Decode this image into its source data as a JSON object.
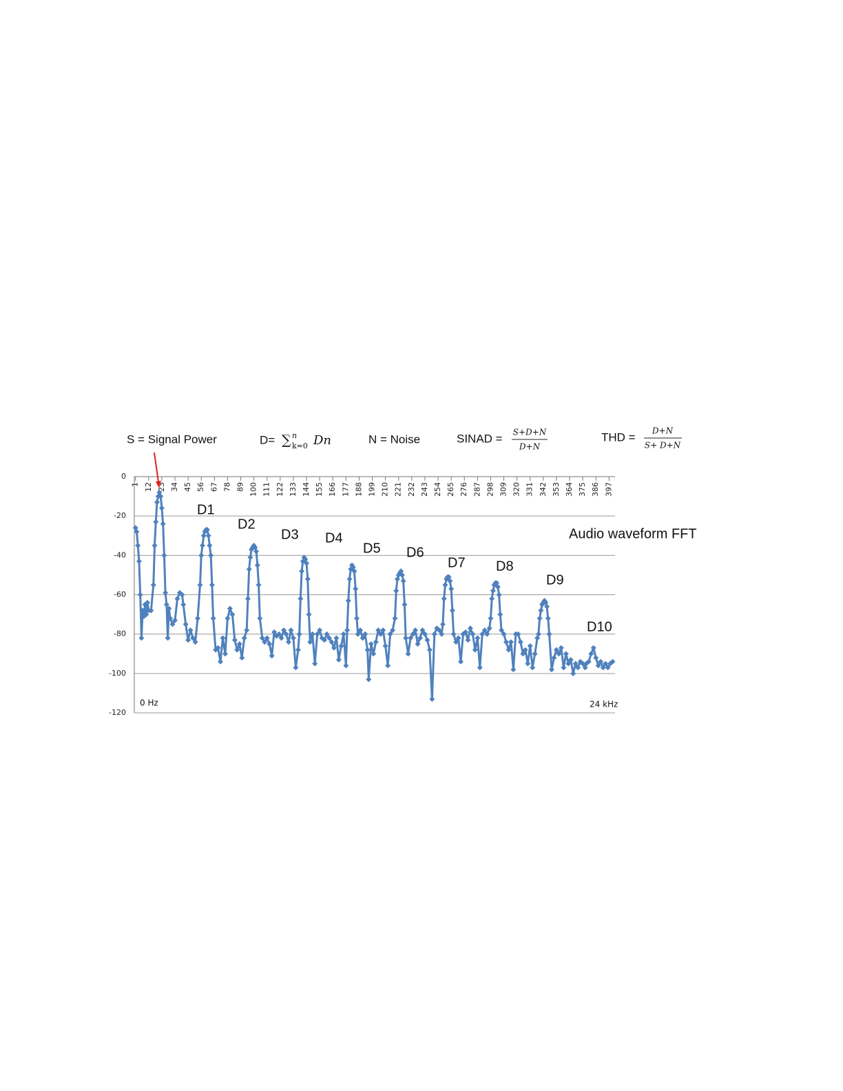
{
  "chart_data": {
    "type": "line",
    "title": "Audio waveform  FFT",
    "equations": {
      "signal": "S = Signal Power",
      "distortion": {
        "prefix": "D=",
        "sum": "∑",
        "sup": "n",
        "sub": "k=0",
        "term": "Dn"
      },
      "noise": "N = Noise",
      "sinad": {
        "label": "SINAD =",
        "numerator": "S+D+N",
        "denominator": "D+N"
      },
      "thd": {
        "label": "THD =",
        "numerator": "D+N",
        "denominator": "S+ D+N"
      }
    },
    "annotations": [
      "D1",
      "D2",
      "D3",
      "D4",
      "D5",
      "D6",
      "D7",
      "D8",
      "D9",
      "D10"
    ],
    "x_start_label": "0 Hz",
    "x_end_label": "24 kHz",
    "xlim": [
      0,
      402
    ],
    "xticks": [
      1,
      12,
      23,
      34,
      45,
      56,
      67,
      78,
      89,
      100,
      111,
      122,
      133,
      144,
      155,
      166,
      177,
      188,
      199,
      210,
      221,
      232,
      243,
      254,
      265,
      276,
      287,
      298,
      309,
      320,
      331,
      342,
      353,
      364,
      375,
      386,
      397
    ],
    "ylim": [
      -120,
      0
    ],
    "yticks": [
      0,
      -20,
      -40,
      -60,
      -80,
      -100,
      -120
    ],
    "grid": true,
    "x": [
      1,
      2,
      3,
      4,
      5,
      6,
      7,
      8,
      9,
      10,
      11,
      12,
      14,
      16,
      17,
      18,
      19,
      20,
      21,
      22,
      23,
      24,
      25,
      26,
      27,
      28,
      29,
      30,
      32,
      34,
      36,
      38,
      40,
      41,
      43,
      45,
      47,
      49,
      51,
      53,
      55,
      56,
      57,
      58,
      59,
      60,
      61,
      62,
      63,
      64,
      65,
      66,
      68,
      70,
      72,
      74,
      76,
      78,
      80,
      82,
      84,
      86,
      88,
      90,
      92,
      94,
      95,
      96,
      97,
      98,
      99,
      100,
      101,
      102,
      103,
      104,
      105,
      107,
      109,
      111,
      113,
      115,
      117,
      119,
      121,
      123,
      125,
      127,
      129,
      131,
      133,
      135,
      137,
      138,
      139,
      140,
      141,
      142,
      143,
      144,
      145,
      146,
      147,
      149,
      151,
      153,
      155,
      157,
      159,
      161,
      163,
      165,
      167,
      169,
      171,
      173,
      175,
      177,
      178,
      179,
      180,
      181,
      182,
      183,
      184,
      185,
      186,
      187,
      189,
      191,
      193,
      195,
      196,
      198,
      200,
      202,
      204,
      206,
      208,
      210,
      212,
      214,
      216,
      218,
      219,
      220,
      221,
      222,
      223,
      224,
      225,
      226,
      227,
      229,
      231,
      233,
      235,
      237,
      239,
      241,
      243,
      245,
      247,
      249,
      251,
      253,
      255,
      257,
      258,
      259,
      260,
      261,
      262,
      263,
      264,
      265,
      266,
      267,
      269,
      271,
      273,
      275,
      277,
      279,
      281,
      283,
      285,
      287,
      289,
      291,
      293,
      295,
      297,
      298,
      299,
      300,
      301,
      302,
      303,
      304,
      305,
      306,
      307,
      309,
      311,
      313,
      315,
      317,
      319,
      321,
      323,
      325,
      327,
      329,
      331,
      333,
      335,
      337,
      338,
      339,
      340,
      341,
      342,
      343,
      344,
      345,
      346,
      347,
      349,
      351,
      353,
      355,
      357,
      359,
      361,
      363,
      365,
      367,
      369,
      371,
      373,
      375,
      377,
      378,
      380,
      382,
      384,
      386,
      388,
      390,
      392,
      394,
      396,
      398,
      400
    ],
    "series": [
      {
        "color": "#4f81bd",
        "values": [
          -26,
          -28,
          -35,
          -43,
          -60,
          -82,
          -68,
          -71,
          -65,
          -70,
          -64,
          -68,
          -68,
          -55,
          -35,
          -23,
          -13,
          -10,
          -8,
          -10,
          -16,
          -24,
          -40,
          -59,
          -65,
          -82,
          -67,
          -72,
          -75,
          -73,
          -62,
          -59,
          -60,
          -65,
          -75,
          -83,
          -78,
          -82,
          -84,
          -72,
          -55,
          -40,
          -35,
          -30,
          -28,
          -27,
          -27,
          -30,
          -35,
          -40,
          -55,
          -72,
          -88,
          -87,
          -94,
          -82,
          -90,
          -72,
          -67,
          -70,
          -83,
          -88,
          -85,
          -92,
          -82,
          -78,
          -62,
          -47,
          -41,
          -37,
          -36,
          -35,
          -36,
          -38,
          -45,
          -55,
          -72,
          -82,
          -84,
          -82,
          -85,
          -91,
          -79,
          -81,
          -80,
          -82,
          -78,
          -80,
          -84,
          -78,
          -82,
          -97,
          -88,
          -80,
          -62,
          -48,
          -43,
          -41,
          -42,
          -44,
          -52,
          -70,
          -84,
          -80,
          -95,
          -80,
          -78,
          -82,
          -83,
          -80,
          -82,
          -84,
          -87,
          -82,
          -93,
          -86,
          -80,
          -96,
          -78,
          -63,
          -52,
          -47,
          -45,
          -46,
          -48,
          -57,
          -72,
          -80,
          -78,
          -82,
          -80,
          -88,
          -103,
          -85,
          -90,
          -84,
          -78,
          -80,
          -78,
          -86,
          -96,
          -80,
          -78,
          -72,
          -58,
          -52,
          -50,
          -49,
          -48,
          -50,
          -53,
          -65,
          -82,
          -90,
          -82,
          -80,
          -78,
          -85,
          -82,
          -78,
          -80,
          -83,
          -88,
          -113,
          -80,
          -77,
          -78,
          -80,
          -75,
          -62,
          -55,
          -52,
          -51,
          -51,
          -53,
          -57,
          -68,
          -80,
          -84,
          -82,
          -94,
          -80,
          -79,
          -83,
          -77,
          -80,
          -88,
          -82,
          -97,
          -80,
          -78,
          -80,
          -77,
          -72,
          -62,
          -58,
          -55,
          -54,
          -54,
          -56,
          -60,
          -70,
          -78,
          -80,
          -84,
          -88,
          -84,
          -98,
          -80,
          -80,
          -84,
          -90,
          -88,
          -95,
          -86,
          -97,
          -90,
          -82,
          -80,
          -72,
          -68,
          -65,
          -64,
          -63,
          -64,
          -66,
          -72,
          -80,
          -98,
          -92,
          -88,
          -90,
          -87,
          -97,
          -90,
          -95,
          -93,
          -100,
          -95,
          -97,
          -94,
          -95,
          -97,
          -95,
          -94,
          -90,
          -87,
          -92,
          -96,
          -94,
          -97,
          -95,
          -97,
          -95,
          -94
        ]
      }
    ]
  }
}
